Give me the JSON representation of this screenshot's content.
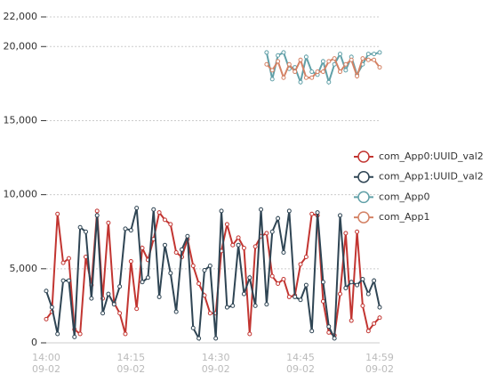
{
  "chart_data": {
    "type": "line",
    "categories": [
      "14:00",
      "14:01",
      "14:02",
      "14:03",
      "14:04",
      "14:05",
      "14:06",
      "14:07",
      "14:08",
      "14:09",
      "14:10",
      "14:11",
      "14:12",
      "14:13",
      "14:14",
      "14:15",
      "14:16",
      "14:17",
      "14:18",
      "14:19",
      "14:20",
      "14:21",
      "14:22",
      "14:23",
      "14:24",
      "14:25",
      "14:26",
      "14:27",
      "14:28",
      "14:29",
      "14:30",
      "14:31",
      "14:32",
      "14:33",
      "14:34",
      "14:35",
      "14:36",
      "14:37",
      "14:38",
      "14:39",
      "14:40",
      "14:41",
      "14:42",
      "14:43",
      "14:44",
      "14:45",
      "14:46",
      "14:47",
      "14:48",
      "14:49",
      "14:50",
      "14:51",
      "14:52",
      "14:53",
      "14:54",
      "14:55",
      "14:56",
      "14:57",
      "14:58",
      "14:59"
    ],
    "date": "09-02",
    "xticks": [
      "14:00",
      "14:15",
      "14:30",
      "14:45",
      "14:59"
    ],
    "ylim": [
      0,
      22000
    ],
    "yticks": [
      0,
      {
        "value": 5000,
        "label": "5,000"
      },
      {
        "value": 10000,
        "label": "10,000"
      },
      {
        "value": 15000,
        "label": "15,000"
      },
      {
        "value": 20000,
        "label": "20,000"
      },
      {
        "value": 22000,
        "label": "22,000"
      }
    ],
    "grid": true,
    "legend": "right",
    "series": [
      {
        "name": "com_App0:UUID_val2",
        "color": "#c23531",
        "values": [
          1600,
          2100,
          8700,
          5400,
          5700,
          900,
          600,
          5800,
          3900,
          8900,
          3000,
          8100,
          2700,
          2000,
          600,
          5500,
          2300,
          6400,
          5600,
          7000,
          8800,
          8300,
          8000,
          6100,
          5800,
          7000,
          5200,
          4000,
          3200,
          2000,
          2000,
          6200,
          8000,
          6600,
          7100,
          6400,
          600,
          6500,
          7200,
          7400,
          4500,
          4000,
          4300,
          3100,
          3200,
          5300,
          5800,
          8700,
          8600,
          2800,
          700,
          500,
          3300,
          7400,
          1500,
          7500,
          2500,
          800,
          1300,
          1700
        ]
      },
      {
        "name": "com_App1:UUID_val2",
        "color": "#2f4554",
        "values": [
          3500,
          2400,
          600,
          4200,
          4200,
          400,
          7800,
          7500,
          3000,
          8600,
          2000,
          3300,
          2600,
          3800,
          7700,
          7600,
          9100,
          4100,
          4400,
          9000,
          3100,
          6600,
          4700,
          2100,
          6300,
          7200,
          1000,
          300,
          4900,
          5200,
          300,
          8900,
          2400,
          2500,
          6600,
          3300,
          4400,
          2500,
          9000,
          2600,
          7500,
          8400,
          6100,
          8900,
          3100,
          2900,
          3900,
          800,
          8800,
          4100,
          1100,
          300,
          8600,
          3700,
          4100,
          3900,
          4300,
          3300,
          4200,
          2400
        ]
      },
      {
        "name": "com_App0",
        "color": "#61a0a8",
        "values": [
          null,
          null,
          null,
          null,
          null,
          null,
          null,
          null,
          null,
          null,
          null,
          null,
          null,
          null,
          null,
          null,
          null,
          null,
          null,
          null,
          null,
          null,
          null,
          null,
          null,
          null,
          null,
          null,
          null,
          null,
          null,
          null,
          null,
          null,
          null,
          null,
          null,
          null,
          null,
          19600,
          17800,
          19400,
          19600,
          18500,
          18600,
          17600,
          19300,
          18300,
          18100,
          19000,
          17600,
          18800,
          19500,
          18400,
          19300,
          18100,
          18800,
          19500,
          19500,
          19600
        ]
      },
      {
        "name": "com_App1",
        "color": "#d48265",
        "values": [
          null,
          null,
          null,
          null,
          null,
          null,
          null,
          null,
          null,
          null,
          null,
          null,
          null,
          null,
          null,
          null,
          null,
          null,
          null,
          null,
          null,
          null,
          null,
          null,
          null,
          null,
          null,
          null,
          null,
          null,
          null,
          null,
          null,
          null,
          null,
          null,
          null,
          null,
          null,
          18800,
          18400,
          19000,
          17900,
          18800,
          18300,
          19100,
          17900,
          17900,
          18300,
          18300,
          19000,
          19200,
          18300,
          18800,
          19100,
          18000,
          19200,
          19100,
          19100,
          18600
        ]
      }
    ]
  }
}
